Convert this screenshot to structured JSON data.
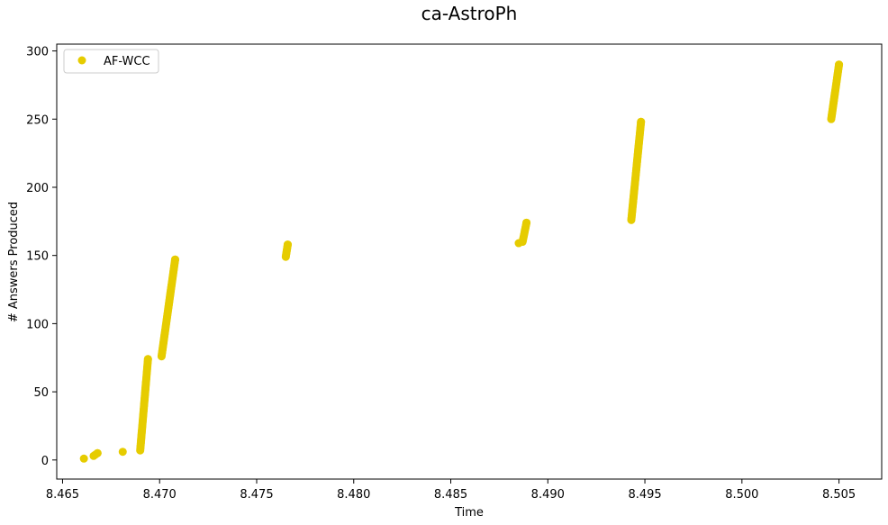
{
  "chart_data": {
    "type": "scatter",
    "title": "ca-AstroPh",
    "xlabel": "Time",
    "ylabel": "# Answers Produced",
    "xlim": [
      8.4647,
      8.5072
    ],
    "ylim": [
      -14,
      305
    ],
    "xticks": [
      8.465,
      8.47,
      8.475,
      8.48,
      8.485,
      8.49,
      8.495,
      8.5,
      8.505
    ],
    "xtick_labels": [
      "8.465",
      "8.470",
      "8.475",
      "8.480",
      "8.485",
      "8.490",
      "8.495",
      "8.500",
      "8.505"
    ],
    "yticks": [
      0,
      50,
      100,
      150,
      200,
      250,
      300
    ],
    "ytick_labels": [
      "0",
      "50",
      "100",
      "150",
      "200",
      "250",
      "300"
    ],
    "grid": false,
    "legend_position": "top-left",
    "series": [
      {
        "name": "AF-WCC",
        "color": "#e6cc00",
        "marker": "circle",
        "segments": [
          {
            "x": [
              8.4661
            ],
            "y": [
              1
            ]
          },
          {
            "x": [
              8.4666,
              8.4667,
              8.4668
            ],
            "y": [
              3,
              4,
              5
            ]
          },
          {
            "x": [
              8.4681
            ],
            "y": [
              6
            ]
          },
          {
            "x": [
              8.469,
              8.4694
            ],
            "y": [
              7,
              74
            ]
          },
          {
            "x": [
              8.4701,
              8.4708
            ],
            "y": [
              76,
              147
            ]
          },
          {
            "x": [
              8.4765,
              8.4766
            ],
            "y": [
              149,
              158
            ]
          },
          {
            "x": [
              8.4885,
              8.4887,
              8.4889
            ],
            "y": [
              159,
              160,
              174
            ]
          },
          {
            "x": [
              8.4943,
              8.4948
            ],
            "y": [
              176,
              248
            ]
          },
          {
            "x": [
              8.5046,
              8.505
            ],
            "y": [
              250,
              290
            ]
          }
        ]
      }
    ]
  }
}
